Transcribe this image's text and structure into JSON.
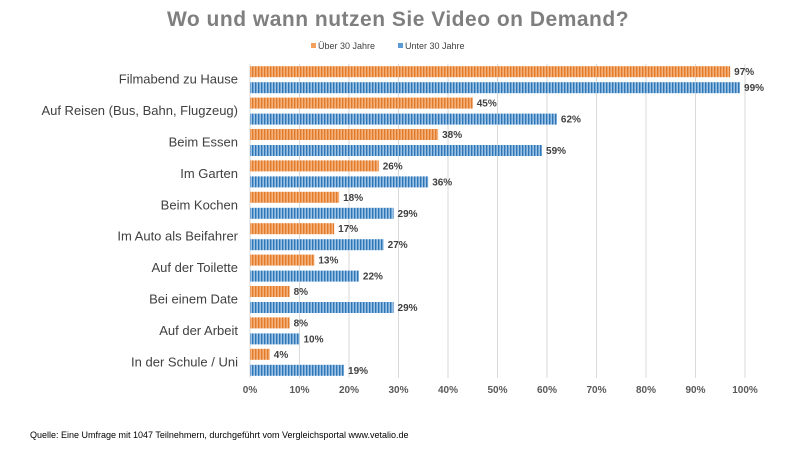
{
  "title": "Wo und wann nutzen Sie Video on Demand?",
  "source": "Quelle: Eine Umfrage mit 1047 Teilnehmern, durchgeführt vom Vergleichsportal www.vetalio.de",
  "chart_data": {
    "type": "bar",
    "orientation": "horizontal",
    "title": "Wo und wann nutzen Sie Video on Demand?",
    "categories": [
      "Filmabend zu Hause",
      "Auf Reisen (Bus, Bahn, Flugzeug)",
      "Beim Essen",
      "Im Garten",
      "Beim Kochen",
      "Im Auto als Beifahrer",
      "Auf der Toilette",
      "Bei einem Date",
      "Auf der Arbeit",
      "In der Schule / Uni"
    ],
    "series": [
      {
        "name": "Über 30 Jahre",
        "color": "#f4a15d",
        "values": [
          97,
          45,
          38,
          26,
          18,
          17,
          13,
          8,
          8,
          4
        ]
      },
      {
        "name": "Unter 30 Jahre",
        "color": "#5b9bd5",
        "values": [
          99,
          62,
          59,
          36,
          29,
          27,
          22,
          29,
          10,
          19
        ]
      }
    ],
    "value_suffix": "%",
    "xlim": [
      0,
      100
    ],
    "xticks": [
      "0%",
      "10%",
      "20%",
      "30%",
      "40%",
      "50%",
      "60%",
      "70%",
      "80%",
      "90%",
      "100%"
    ],
    "xlabel": "",
    "ylabel": "",
    "grid": true,
    "legend": "top"
  }
}
